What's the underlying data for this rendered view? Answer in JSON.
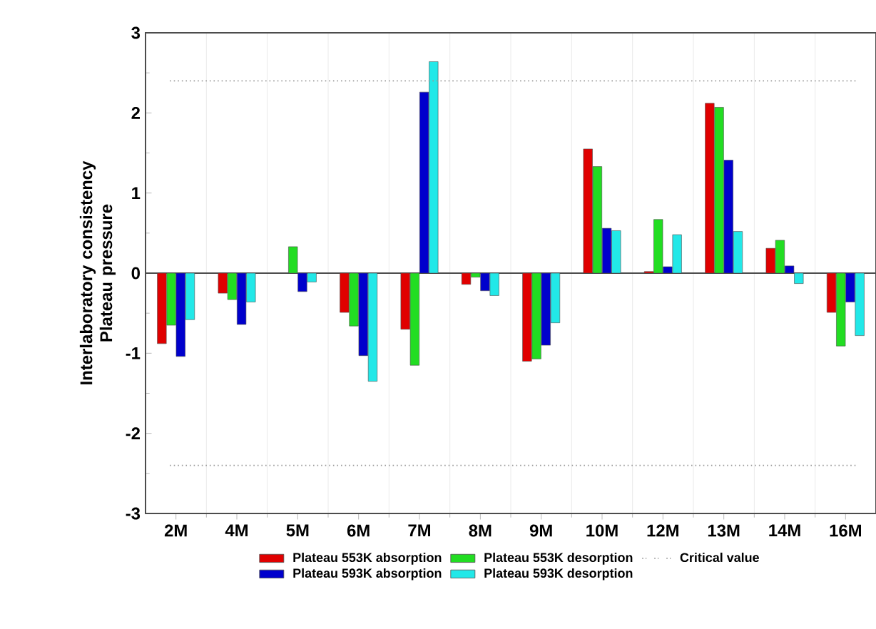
{
  "chart_data": {
    "type": "bar",
    "ylabel": "Interlaboratory consistency Plateau pressure",
    "categories": [
      "2M",
      "4M",
      "5M",
      "6M",
      "7M",
      "8M",
      "9M",
      "10M",
      "12M",
      "13M",
      "14M",
      "16M"
    ],
    "series": [
      {
        "name": "Plateau 553K absorption",
        "color": "#e00000",
        "values": [
          -0.88,
          -0.25,
          null,
          -0.49,
          -0.7,
          -0.14,
          -1.1,
          1.55,
          0.02,
          2.12,
          0.31,
          -0.49
        ]
      },
      {
        "name": "Plateau 553K desorption",
        "color": "#22dd22",
        "values": [
          -0.65,
          -0.33,
          0.33,
          -0.66,
          -1.15,
          -0.05,
          -1.07,
          1.33,
          0.67,
          2.07,
          0.41,
          -0.91
        ]
      },
      {
        "name": "Plateau 593K absorption",
        "color": "#0000cc",
        "values": [
          -1.04,
          -0.64,
          -0.23,
          -1.03,
          2.26,
          -0.22,
          -0.9,
          0.56,
          0.08,
          1.41,
          0.09,
          -0.36
        ]
      },
      {
        "name": "Plateau 593K desorption",
        "color": "#22e8e8",
        "values": [
          -0.58,
          -0.36,
          -0.11,
          -1.35,
          2.64,
          -0.28,
          -0.62,
          0.53,
          0.48,
          0.52,
          -0.13,
          -0.78
        ]
      }
    ],
    "ref_lines": [
      {
        "axis": "y",
        "value": 2.4,
        "label": "Critical value",
        "color": "#999999",
        "line_style": "dotted"
      },
      {
        "axis": "y",
        "value": -2.4,
        "color": "#999999",
        "line_style": "dotted"
      }
    ],
    "ylim": [
      -3,
      3
    ],
    "yticks": [
      -3,
      -2,
      -1,
      0,
      1,
      2,
      3
    ],
    "grid": "x",
    "legend": "bottom"
  }
}
